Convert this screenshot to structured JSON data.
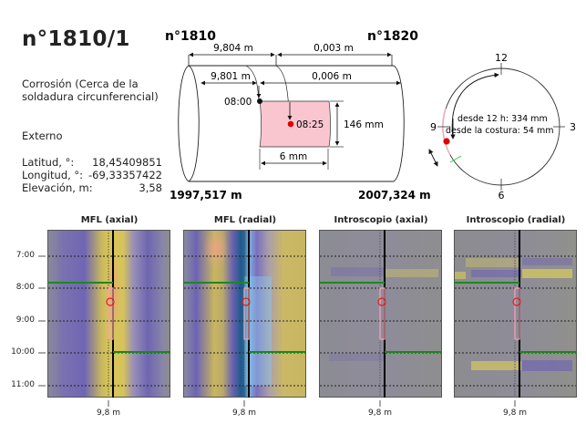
{
  "header": {
    "title": "n°1810/1",
    "description": "Corrosión  (Cerca de la soldadura circunferencial)",
    "location": "Externo",
    "coordinates": [
      {
        "label": "Latitud, °:",
        "value": "18,45409851"
      },
      {
        "label": "Longitud, °:",
        "value": "-69,33357422"
      },
      {
        "label": "Elevación, m:",
        "value": "3,58"
      }
    ]
  },
  "pipe_diagram": {
    "weld_left": "n°1810",
    "weld_right": "n°1820",
    "dist_top_left": "9,804 m",
    "dist_top_right": "0,003 m",
    "dist_mid_left": "9,801 m",
    "dist_mid_right": "0,006 m",
    "clock_start": "08:00",
    "clock_center": "08:25",
    "height": "146 mm",
    "length": "6 mm",
    "chainage_left": "1997,517 m",
    "chainage_right": "2007,324 m",
    "defect_color": "#f9c6d0",
    "marker_color": "#e00000"
  },
  "clock_diagram": {
    "label_12": "12",
    "label_3": "3",
    "label_6": "6",
    "label_9": "9",
    "from_12": "desde 12 h: 334 mm",
    "from_seam": "desde la costura: 54 mm",
    "seam_color": "#33cc33"
  },
  "scans": {
    "y_ticks": [
      "7:00",
      "8:00",
      "9:00",
      "10:00",
      "11:00"
    ],
    "x_label": "9,8 m",
    "panels": [
      {
        "title": "MFL (axial)"
      },
      {
        "title": "MFL (radial)"
      },
      {
        "title": "Introscopio (axial)"
      },
      {
        "title": "Introscopio (radial)"
      }
    ],
    "weld_color": "#1a8a1a",
    "defect_box_color": "#f4a0b0",
    "defect_marker_color": "#e02020"
  }
}
